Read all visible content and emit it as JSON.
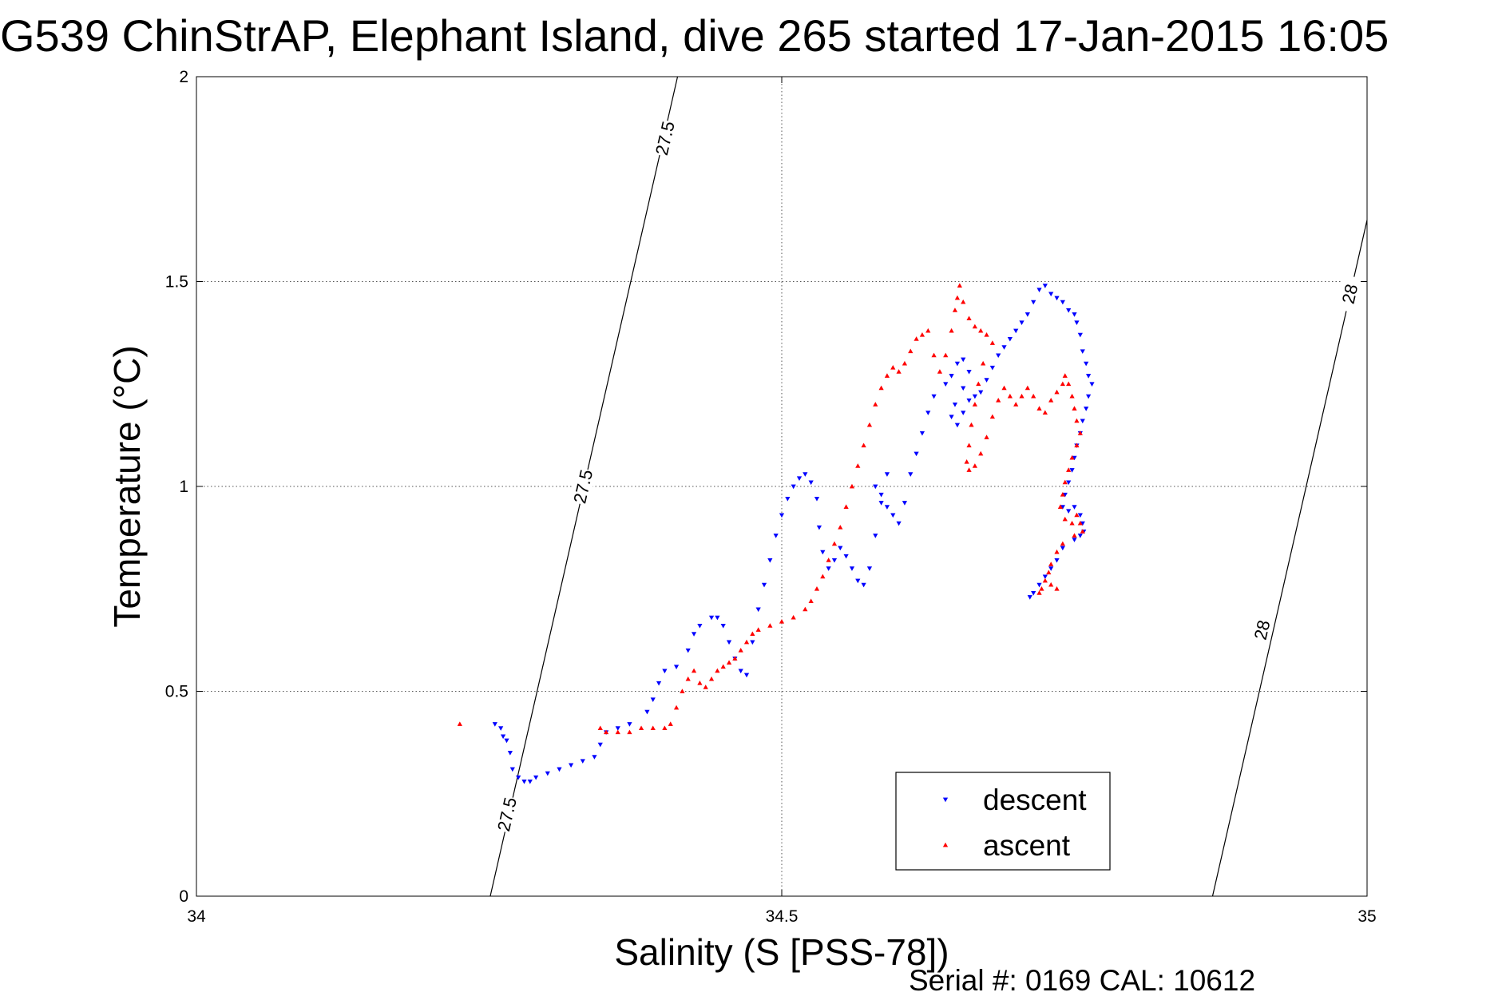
{
  "chart_data": {
    "type": "scatter",
    "title": "G539 ChinStrAP, Elephant Island, dive 265 started 17-Jan-2015 16:05",
    "xlabel": "Salinity (S [PSS-78])",
    "ylabel": "Temperature (°C)",
    "xlim": [
      34,
      35
    ],
    "ylim": [
      0,
      2
    ],
    "xticks": [
      "34",
      "34.5",
      "35"
    ],
    "yticks": [
      "0",
      "0.5",
      "1",
      "1.5",
      "2"
    ],
    "grid": true,
    "legend_position": "bottom-right",
    "footer": "Serial #: 0169 CAL: 10612",
    "isopycnals": [
      {
        "label": "27.5",
        "points": [
          [
            34.251,
            0.0
          ],
          [
            34.411,
            2.0
          ]
        ],
        "label_positions": [
          [
            34.265,
            0.2
          ],
          [
            34.33,
            1.0
          ],
          [
            34.4,
            1.85
          ]
        ]
      },
      {
        "label": "28",
        "points": [
          [
            34.868,
            0.0
          ],
          [
            35.0,
            1.65
          ]
        ],
        "label_positions": [
          [
            34.91,
            0.65
          ],
          [
            34.985,
            1.47
          ]
        ]
      }
    ],
    "series": [
      {
        "name": "descent",
        "color": "#0000ff",
        "marker": "triangle-down",
        "points": [
          [
            34.255,
            0.42
          ],
          [
            34.26,
            0.41
          ],
          [
            34.262,
            0.39
          ],
          [
            34.265,
            0.38
          ],
          [
            34.268,
            0.35
          ],
          [
            34.27,
            0.31
          ],
          [
            34.275,
            0.29
          ],
          [
            34.28,
            0.28
          ],
          [
            34.285,
            0.28
          ],
          [
            34.29,
            0.29
          ],
          [
            34.3,
            0.3
          ],
          [
            34.31,
            0.31
          ],
          [
            34.32,
            0.32
          ],
          [
            34.33,
            0.33
          ],
          [
            34.34,
            0.34
          ],
          [
            34.345,
            0.37
          ],
          [
            34.35,
            0.4
          ],
          [
            34.36,
            0.41
          ],
          [
            34.37,
            0.42
          ],
          [
            34.385,
            0.45
          ],
          [
            34.39,
            0.48
          ],
          [
            34.395,
            0.52
          ],
          [
            34.4,
            0.55
          ],
          [
            34.41,
            0.56
          ],
          [
            34.42,
            0.6
          ],
          [
            34.425,
            0.64
          ],
          [
            34.43,
            0.66
          ],
          [
            34.44,
            0.68
          ],
          [
            34.445,
            0.68
          ],
          [
            34.45,
            0.66
          ],
          [
            34.455,
            0.62
          ],
          [
            34.46,
            0.58
          ],
          [
            34.465,
            0.55
          ],
          [
            34.47,
            0.54
          ],
          [
            34.475,
            0.62
          ],
          [
            34.48,
            0.7
          ],
          [
            34.485,
            0.76
          ],
          [
            34.49,
            0.82
          ],
          [
            34.495,
            0.88
          ],
          [
            34.5,
            0.93
          ],
          [
            34.505,
            0.97
          ],
          [
            34.51,
            1.0
          ],
          [
            34.515,
            1.02
          ],
          [
            34.52,
            1.03
          ],
          [
            34.525,
            1.01
          ],
          [
            34.53,
            0.97
          ],
          [
            34.532,
            0.9
          ],
          [
            34.535,
            0.84
          ],
          [
            34.54,
            0.8
          ],
          [
            34.545,
            0.82
          ],
          [
            34.55,
            0.85
          ],
          [
            34.555,
            0.83
          ],
          [
            34.56,
            0.8
          ],
          [
            34.565,
            0.77
          ],
          [
            34.57,
            0.76
          ],
          [
            34.575,
            0.8
          ],
          [
            34.58,
            0.88
          ],
          [
            34.585,
            0.96
          ],
          [
            34.59,
            1.03
          ],
          [
            34.58,
            1.0
          ],
          [
            34.585,
            0.98
          ],
          [
            34.59,
            0.95
          ],
          [
            34.595,
            0.93
          ],
          [
            34.6,
            0.91
          ],
          [
            34.605,
            0.96
          ],
          [
            34.61,
            1.03
          ],
          [
            34.615,
            1.08
          ],
          [
            34.62,
            1.13
          ],
          [
            34.625,
            1.18
          ],
          [
            34.63,
            1.22
          ],
          [
            34.64,
            1.25
          ],
          [
            34.645,
            1.27
          ],
          [
            34.65,
            1.3
          ],
          [
            34.655,
            1.31
          ],
          [
            34.66,
            1.28
          ],
          [
            34.655,
            1.24
          ],
          [
            34.648,
            1.2
          ],
          [
            34.645,
            1.17
          ],
          [
            34.65,
            1.15
          ],
          [
            34.655,
            1.18
          ],
          [
            34.66,
            1.21
          ],
          [
            34.665,
            1.22
          ],
          [
            34.67,
            1.23
          ],
          [
            34.675,
            1.26
          ],
          [
            34.68,
            1.29
          ],
          [
            34.685,
            1.32
          ],
          [
            34.69,
            1.34
          ],
          [
            34.695,
            1.36
          ],
          [
            34.7,
            1.38
          ],
          [
            34.705,
            1.4
          ],
          [
            34.71,
            1.42
          ],
          [
            34.715,
            1.45
          ],
          [
            34.72,
            1.48
          ],
          [
            34.725,
            1.49
          ],
          [
            34.73,
            1.47
          ],
          [
            34.735,
            1.46
          ],
          [
            34.74,
            1.45
          ],
          [
            34.745,
            1.43
          ],
          [
            34.75,
            1.42
          ],
          [
            34.752,
            1.4
          ],
          [
            34.755,
            1.37
          ],
          [
            34.757,
            1.33
          ],
          [
            34.76,
            1.3
          ],
          [
            34.762,
            1.27
          ],
          [
            34.765,
            1.25
          ],
          [
            34.762,
            1.22
          ],
          [
            34.76,
            1.19
          ],
          [
            34.757,
            1.16
          ],
          [
            34.755,
            1.13
          ],
          [
            34.752,
            1.1
          ],
          [
            34.75,
            1.07
          ],
          [
            34.748,
            1.04
          ],
          [
            34.745,
            1.01
          ],
          [
            34.742,
            0.98
          ],
          [
            34.74,
            0.95
          ],
          [
            34.745,
            0.94
          ],
          [
            34.75,
            0.95
          ],
          [
            34.755,
            0.93
          ],
          [
            34.757,
            0.91
          ],
          [
            34.758,
            0.89
          ],
          [
            34.755,
            0.88
          ],
          [
            34.75,
            0.87
          ],
          [
            34.74,
            0.85
          ],
          [
            34.735,
            0.82
          ],
          [
            34.73,
            0.8
          ],
          [
            34.725,
            0.78
          ],
          [
            34.72,
            0.76
          ],
          [
            34.715,
            0.74
          ],
          [
            34.712,
            0.73
          ]
        ]
      },
      {
        "name": "ascent",
        "color": "#ff0000",
        "marker": "triangle-up",
        "points": [
          [
            34.225,
            0.42
          ],
          [
            34.345,
            0.41
          ],
          [
            34.35,
            0.4
          ],
          [
            34.36,
            0.4
          ],
          [
            34.37,
            0.4
          ],
          [
            34.38,
            0.41
          ],
          [
            34.39,
            0.41
          ],
          [
            34.4,
            0.41
          ],
          [
            34.405,
            0.42
          ],
          [
            34.41,
            0.46
          ],
          [
            34.415,
            0.5
          ],
          [
            34.42,
            0.53
          ],
          [
            34.425,
            0.55
          ],
          [
            34.43,
            0.52
          ],
          [
            34.435,
            0.51
          ],
          [
            34.44,
            0.53
          ],
          [
            34.445,
            0.55
          ],
          [
            34.45,
            0.56
          ],
          [
            34.455,
            0.57
          ],
          [
            34.46,
            0.58
          ],
          [
            34.465,
            0.6
          ],
          [
            34.47,
            0.62
          ],
          [
            34.475,
            0.64
          ],
          [
            34.48,
            0.65
          ],
          [
            34.49,
            0.66
          ],
          [
            34.5,
            0.67
          ],
          [
            34.51,
            0.68
          ],
          [
            34.52,
            0.7
          ],
          [
            34.525,
            0.72
          ],
          [
            34.53,
            0.75
          ],
          [
            34.535,
            0.78
          ],
          [
            34.54,
            0.82
          ],
          [
            34.545,
            0.86
          ],
          [
            34.55,
            0.9
          ],
          [
            34.555,
            0.95
          ],
          [
            34.56,
            1.0
          ],
          [
            34.565,
            1.05
          ],
          [
            34.57,
            1.1
          ],
          [
            34.575,
            1.15
          ],
          [
            34.58,
            1.2
          ],
          [
            34.585,
            1.24
          ],
          [
            34.59,
            1.27
          ],
          [
            34.595,
            1.29
          ],
          [
            34.6,
            1.28
          ],
          [
            34.605,
            1.3
          ],
          [
            34.61,
            1.33
          ],
          [
            34.615,
            1.36
          ],
          [
            34.62,
            1.37
          ],
          [
            34.625,
            1.38
          ],
          [
            34.63,
            1.32
          ],
          [
            34.635,
            1.28
          ],
          [
            34.64,
            1.32
          ],
          [
            34.645,
            1.38
          ],
          [
            34.648,
            1.43
          ],
          [
            34.65,
            1.46
          ],
          [
            34.652,
            1.49
          ],
          [
            34.655,
            1.45
          ],
          [
            34.66,
            1.41
          ],
          [
            34.665,
            1.39
          ],
          [
            34.67,
            1.38
          ],
          [
            34.675,
            1.37
          ],
          [
            34.68,
            1.35
          ],
          [
            34.672,
            1.3
          ],
          [
            34.668,
            1.25
          ],
          [
            34.665,
            1.2
          ],
          [
            34.662,
            1.15
          ],
          [
            34.66,
            1.1
          ],
          [
            34.658,
            1.06
          ],
          [
            34.66,
            1.04
          ],
          [
            34.665,
            1.05
          ],
          [
            34.67,
            1.08
          ],
          [
            34.675,
            1.12
          ],
          [
            34.68,
            1.17
          ],
          [
            34.685,
            1.21
          ],
          [
            34.69,
            1.24
          ],
          [
            34.695,
            1.22
          ],
          [
            34.7,
            1.2
          ],
          [
            34.705,
            1.22
          ],
          [
            34.71,
            1.24
          ],
          [
            34.715,
            1.22
          ],
          [
            34.72,
            1.19
          ],
          [
            34.725,
            1.18
          ],
          [
            34.73,
            1.21
          ],
          [
            34.735,
            1.23
          ],
          [
            34.74,
            1.25
          ],
          [
            34.742,
            1.27
          ],
          [
            34.745,
            1.25
          ],
          [
            34.748,
            1.22
          ],
          [
            34.75,
            1.19
          ],
          [
            34.752,
            1.16
          ],
          [
            34.755,
            1.13
          ],
          [
            34.752,
            1.1
          ],
          [
            34.748,
            1.07
          ],
          [
            34.745,
            1.04
          ],
          [
            34.742,
            1.01
          ],
          [
            34.74,
            0.98
          ],
          [
            34.738,
            0.95
          ],
          [
            34.742,
            0.92
          ],
          [
            34.748,
            0.91
          ],
          [
            34.752,
            0.93
          ],
          [
            34.755,
            0.91
          ],
          [
            34.757,
            0.89
          ],
          [
            34.75,
            0.88
          ],
          [
            34.74,
            0.86
          ],
          [
            34.735,
            0.84
          ],
          [
            34.73,
            0.81
          ],
          [
            34.728,
            0.79
          ],
          [
            34.725,
            0.77
          ],
          [
            34.722,
            0.75
          ],
          [
            34.72,
            0.74
          ],
          [
            34.73,
            0.76
          ],
          [
            34.735,
            0.75
          ]
        ]
      }
    ]
  }
}
